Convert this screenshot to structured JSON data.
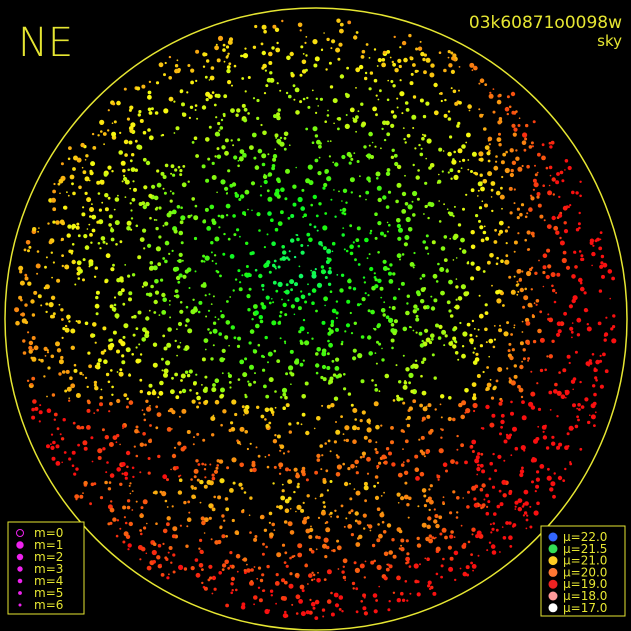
{
  "corner_label": "NE",
  "image_id": "03k60871o0098w",
  "image_type": "sky",
  "magnitude_legend": [
    {
      "label": "m=0"
    },
    {
      "label": "m=1"
    },
    {
      "label": "m=2"
    },
    {
      "label": "m=3"
    },
    {
      "label": "m=4"
    },
    {
      "label": "m=5"
    },
    {
      "label": "m=6"
    }
  ],
  "mu_legend": [
    {
      "label": "μ=22.0",
      "color": "#3366ff"
    },
    {
      "label": "μ=21.5",
      "color": "#33dd55"
    },
    {
      "label": "μ=21.0",
      "color": "#ffcc22"
    },
    {
      "label": "μ=20.0",
      "color": "#ff7733"
    },
    {
      "label": "μ=19.0",
      "color": "#ee2222"
    },
    {
      "label": "μ=18.0",
      "color": "#ff9999"
    },
    {
      "label": "μ=17.0",
      "color": "#ffffff"
    }
  ]
}
